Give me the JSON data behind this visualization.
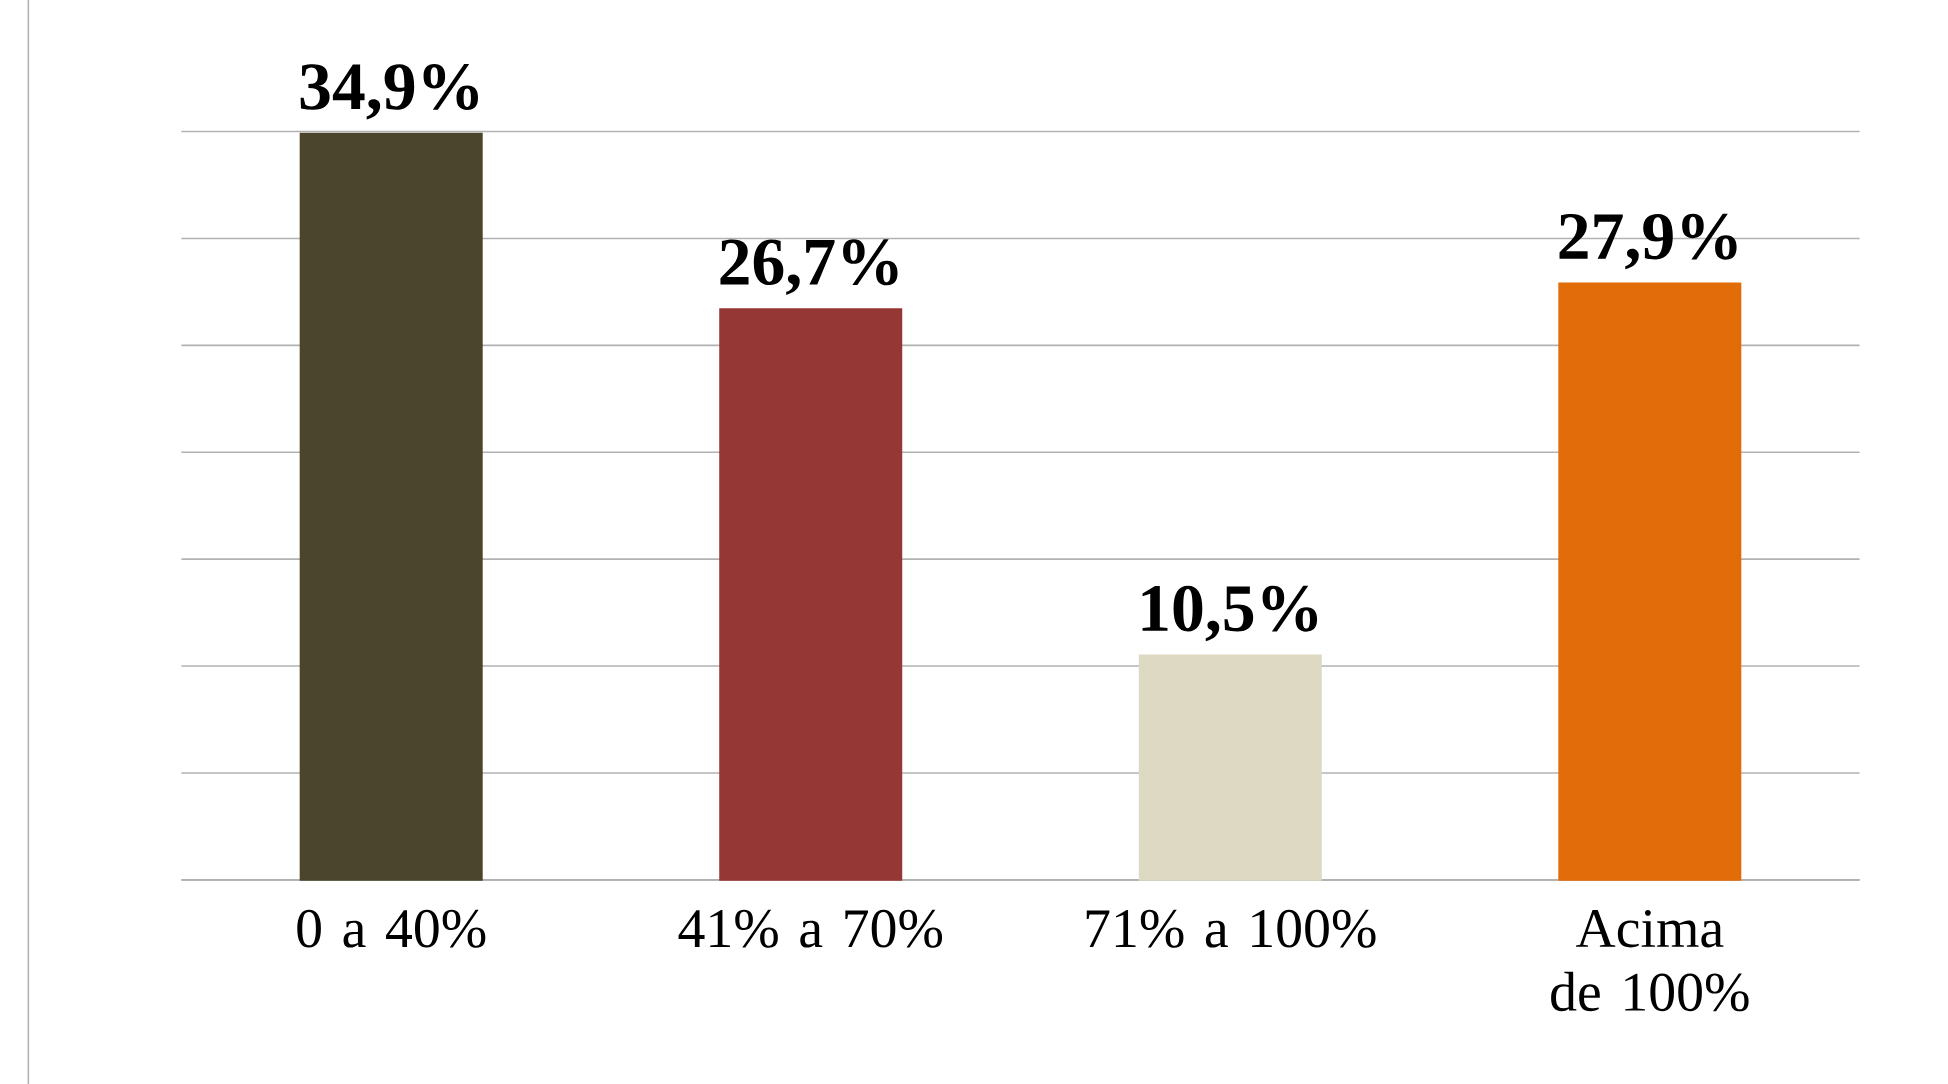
{
  "chart_data": {
    "type": "bar",
    "categories": [
      "0 a 40%",
      "41% a 70%",
      "71% a 100%",
      "Acima de 100%"
    ],
    "values": [
      34.9,
      26.7,
      10.5,
      27.9
    ],
    "colors": [
      "#4a452c",
      "#953735",
      "#ddd9c3",
      "#e36c0a"
    ],
    "value_labels": [
      "34,9%",
      "26,7%",
      "10,5%",
      "27,9%"
    ],
    "ylim": [
      0,
      35
    ],
    "yticks": [
      {
        "value": 0,
        "label": null
      },
      {
        "value": 5,
        "label": null
      },
      {
        "value": 10,
        "label": null
      },
      {
        "value": 15,
        "label": null
      },
      {
        "value": 20,
        "label": null
      },
      {
        "value": 25,
        "label": null
      },
      {
        "value": 30,
        "label": null
      },
      {
        "value": 35,
        "label": null
      }
    ],
    "grid": "y",
    "tick_labels": "x"
  }
}
